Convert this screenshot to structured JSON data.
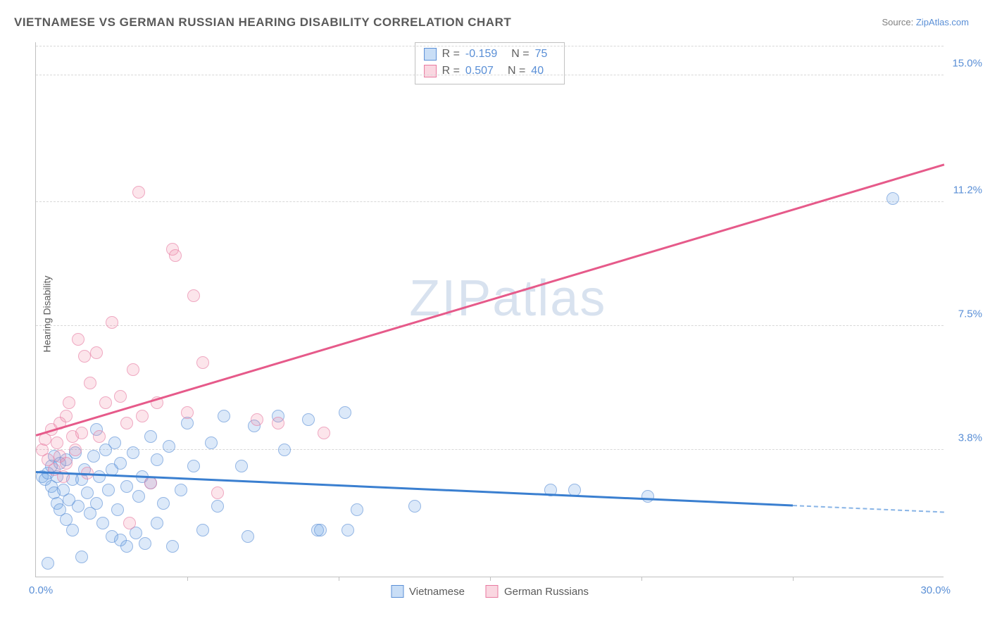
{
  "title": "VIETNAMESE VS GERMAN RUSSIAN HEARING DISABILITY CORRELATION CHART",
  "source_prefix": "Source: ",
  "source_name": "ZipAtlas.com",
  "ylabel": "Hearing Disability",
  "watermark": {
    "part1": "ZIP",
    "part2": "atlas"
  },
  "chart": {
    "type": "scatter",
    "xlim": [
      0,
      30
    ],
    "ylim": [
      0,
      16
    ],
    "yticks": [
      {
        "v": 3.8,
        "label": "3.8%"
      },
      {
        "v": 7.5,
        "label": "7.5%"
      },
      {
        "v": 11.2,
        "label": "11.2%"
      },
      {
        "v": 15.0,
        "label": "15.0%"
      }
    ],
    "xtick_step": 5,
    "xtick_left": "0.0%",
    "xtick_right": "30.0%",
    "plot_bg": "#ffffff",
    "grid_color": "#d8d8d8",
    "series": {
      "vietnamese": {
        "color": "#5a8fd6",
        "fill": "rgba(100,160,230,0.35)",
        "label": "Vietnamese",
        "R": "-0.159",
        "N": "75",
        "marker_size": 18,
        "trend": {
          "x1": 0,
          "y1": 3.1,
          "x2": 25,
          "y2": 2.1,
          "dash_x2": 30,
          "dash_y2": 1.9
        },
        "points": [
          [
            0.2,
            3.0
          ],
          [
            0.3,
            2.9
          ],
          [
            0.4,
            3.1
          ],
          [
            0.5,
            2.7
          ],
          [
            0.5,
            3.3
          ],
          [
            0.6,
            2.5
          ],
          [
            0.7,
            3.0
          ],
          [
            0.7,
            2.2
          ],
          [
            0.8,
            3.4
          ],
          [
            0.8,
            2.0
          ],
          [
            0.9,
            2.6
          ],
          [
            1.0,
            1.7
          ],
          [
            1.0,
            3.5
          ],
          [
            1.1,
            2.3
          ],
          [
            1.2,
            2.9
          ],
          [
            1.2,
            1.4
          ],
          [
            1.3,
            3.7
          ],
          [
            1.4,
            2.1
          ],
          [
            1.5,
            2.9
          ],
          [
            1.5,
            0.6
          ],
          [
            1.6,
            3.2
          ],
          [
            1.7,
            2.5
          ],
          [
            1.8,
            1.9
          ],
          [
            1.9,
            3.6
          ],
          [
            2.0,
            2.2
          ],
          [
            2.0,
            4.4
          ],
          [
            2.1,
            3.0
          ],
          [
            2.2,
            1.6
          ],
          [
            2.3,
            3.8
          ],
          [
            2.4,
            2.6
          ],
          [
            2.5,
            3.2
          ],
          [
            2.5,
            1.2
          ],
          [
            2.6,
            4.0
          ],
          [
            2.7,
            2.0
          ],
          [
            2.8,
            1.1
          ],
          [
            2.8,
            3.4
          ],
          [
            3.0,
            2.7
          ],
          [
            3.0,
            0.9
          ],
          [
            3.2,
            3.7
          ],
          [
            3.3,
            1.3
          ],
          [
            3.4,
            2.4
          ],
          [
            3.5,
            3.0
          ],
          [
            3.6,
            1.0
          ],
          [
            3.8,
            2.8
          ],
          [
            3.8,
            4.2
          ],
          [
            4.0,
            3.5
          ],
          [
            4.0,
            1.6
          ],
          [
            4.2,
            2.2
          ],
          [
            4.4,
            3.9
          ],
          [
            4.5,
            0.9
          ],
          [
            4.8,
            2.6
          ],
          [
            5.0,
            4.6
          ],
          [
            5.2,
            3.3
          ],
          [
            5.5,
            1.4
          ],
          [
            5.8,
            4.0
          ],
          [
            6.0,
            2.1
          ],
          [
            6.2,
            4.8
          ],
          [
            6.8,
            3.3
          ],
          [
            7.0,
            1.2
          ],
          [
            7.2,
            4.5
          ],
          [
            8.0,
            4.8
          ],
          [
            8.2,
            3.8
          ],
          [
            9.0,
            4.7
          ],
          [
            9.3,
            1.4
          ],
          [
            9.4,
            1.4
          ],
          [
            10.2,
            4.9
          ],
          [
            10.3,
            1.4
          ],
          [
            10.6,
            2.0
          ],
          [
            12.5,
            2.1
          ],
          [
            17.0,
            2.6
          ],
          [
            17.8,
            2.6
          ],
          [
            20.2,
            2.4
          ],
          [
            28.3,
            11.3
          ],
          [
            0.4,
            0.4
          ],
          [
            0.6,
            3.6
          ]
        ]
      },
      "german_russians": {
        "color": "#e87aa0",
        "fill": "rgba(240,140,170,0.35)",
        "label": "German Russians",
        "R": "0.507",
        "N": "40",
        "marker_size": 18,
        "trend": {
          "x1": 0,
          "y1": 4.2,
          "x2": 30,
          "y2": 12.3
        },
        "points": [
          [
            0.2,
            3.8
          ],
          [
            0.3,
            4.1
          ],
          [
            0.4,
            3.5
          ],
          [
            0.5,
            4.4
          ],
          [
            0.6,
            3.2
          ],
          [
            0.7,
            4.0
          ],
          [
            0.8,
            3.6
          ],
          [
            0.8,
            4.6
          ],
          [
            0.9,
            3.0
          ],
          [
            1.0,
            4.8
          ],
          [
            1.0,
            3.4
          ],
          [
            1.1,
            5.2
          ],
          [
            1.2,
            4.2
          ],
          [
            1.3,
            3.8
          ],
          [
            1.4,
            7.1
          ],
          [
            1.5,
            4.3
          ],
          [
            1.6,
            6.6
          ],
          [
            1.7,
            3.1
          ],
          [
            1.8,
            5.8
          ],
          [
            2.0,
            6.7
          ],
          [
            2.1,
            4.2
          ],
          [
            2.3,
            5.2
          ],
          [
            2.5,
            7.6
          ],
          [
            2.8,
            5.4
          ],
          [
            3.0,
            4.6
          ],
          [
            3.1,
            1.6
          ],
          [
            3.2,
            6.2
          ],
          [
            3.4,
            11.5
          ],
          [
            3.5,
            4.8
          ],
          [
            3.8,
            2.8
          ],
          [
            4.0,
            5.2
          ],
          [
            4.5,
            9.8
          ],
          [
            4.6,
            9.6
          ],
          [
            5.0,
            4.9
          ],
          [
            5.2,
            8.4
          ],
          [
            5.5,
            6.4
          ],
          [
            6.0,
            2.5
          ],
          [
            7.3,
            4.7
          ],
          [
            8.0,
            4.6
          ],
          [
            9.5,
            4.3
          ]
        ]
      }
    }
  },
  "stats_box": {
    "rows": [
      {
        "swatch": "blue",
        "R": "-0.159",
        "N": "75"
      },
      {
        "swatch": "pink",
        "R": "0.507",
        "N": "40"
      }
    ],
    "r_label": "R =",
    "n_label": "N ="
  },
  "legend": [
    {
      "swatch": "blue",
      "text": "Vietnamese"
    },
    {
      "swatch": "pink",
      "text": "German Russians"
    }
  ]
}
